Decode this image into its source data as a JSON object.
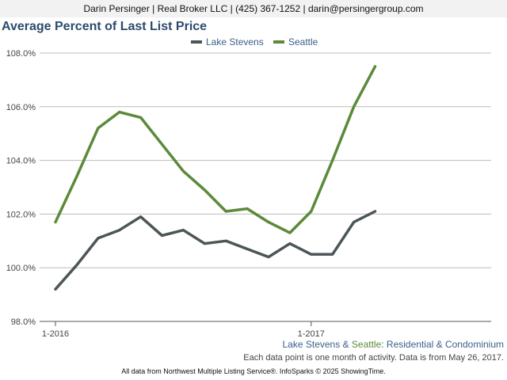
{
  "header": {
    "contact": "Darin Persinger | Real Broker LLC | (425) 367-1252 | darin@persingergroup.com"
  },
  "colors": {
    "title": "#2c4a6b",
    "lake_stevens": "#4c5557",
    "seattle": "#5b8a3a",
    "grid": "#bdbdbd",
    "axis": "#555555",
    "subtitle_blue": "#3a5f8a"
  },
  "chart_data": {
    "type": "line",
    "title": "Average Percent of Last List Price",
    "xlabel": "",
    "ylabel": "",
    "ylim": [
      98.0,
      108.0
    ],
    "yticks": [
      "98.0%",
      "100.0%",
      "102.0%",
      "104.0%",
      "106.0%",
      "108.0%"
    ],
    "x": [
      "2016-01",
      "2016-02",
      "2016-03",
      "2016-04",
      "2016-05",
      "2016-06",
      "2016-07",
      "2016-08",
      "2016-09",
      "2016-10",
      "2016-11",
      "2016-12",
      "2017-01",
      "2017-02",
      "2017-03",
      "2017-04"
    ],
    "xtick_labels": [
      {
        "month": "2016-01",
        "label": "1-2016"
      },
      {
        "month": "2017-01",
        "label": "1-2017"
      }
    ],
    "legend_position": "top-center",
    "grid": true,
    "series": [
      {
        "name": "Lake Stevens",
        "color": "#4c5557",
        "values": [
          99.2,
          100.1,
          101.1,
          101.4,
          101.9,
          101.2,
          101.4,
          100.9,
          101.0,
          100.7,
          100.4,
          100.9,
          100.5,
          100.5,
          101.7,
          102.1
        ]
      },
      {
        "name": "Seattle",
        "color": "#5b8a3a",
        "values": [
          101.7,
          103.4,
          105.2,
          105.8,
          105.6,
          104.6,
          103.6,
          102.9,
          102.1,
          102.2,
          101.7,
          101.3,
          102.1,
          104.0,
          106.0,
          107.5
        ]
      }
    ]
  },
  "subtitle": {
    "area1": "Lake Stevens",
    "amp": " & ",
    "area2": "Seattle",
    "rest": ": Residential & Condominium"
  },
  "note": "Each data point is one month of activity. Data is from May 26, 2017.",
  "footer": "All data from Northwest Multiple Listing Service®. InfoSparks © 2025 ShowingTime."
}
